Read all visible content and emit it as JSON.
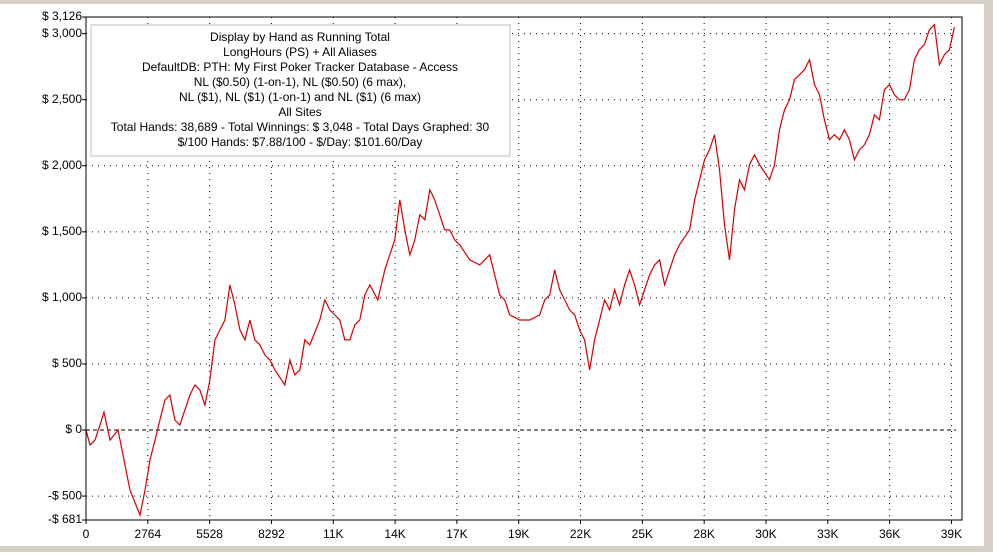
{
  "chart_data": {
    "type": "line",
    "color": "#d40000",
    "grid": true,
    "info_box": [
      "Display by Hand as Running Total",
      "LongHours (PS) + All Aliases",
      "DefaultDB: PTH: My First Poker Tracker Database - Access",
      "NL ($0.50) (1-on-1), NL ($0.50) (6 max),",
      "NL ($1), NL ($1) (1-on-1) and NL ($1) (6 max)",
      "All Sites",
      "Total Hands: 38,689 - Total Winnings: $ 3,048 - Total Days Graphed: 30",
      "$/100 Hands: $7.88/100 - $/Day: $101.60/Day"
    ],
    "xlim": [
      0,
      38900
    ],
    "ylim": [
      -681,
      3126
    ],
    "xticks": [
      0,
      2764,
      5528,
      8292,
      {
        "value": 11056,
        "label": "11K"
      },
      {
        "value": 13820,
        "label": "14K"
      },
      {
        "value": 16584,
        "label": "17K"
      },
      {
        "value": 19348,
        "label": "19K"
      },
      {
        "value": 22112,
        "label": "22K"
      },
      {
        "value": 24876,
        "label": "25K"
      },
      {
        "value": 27640,
        "label": "28K"
      },
      {
        "value": 30404,
        "label": "30K"
      },
      {
        "value": 33168,
        "label": "33K"
      },
      {
        "value": 35932,
        "label": "36K"
      },
      {
        "value": 38696,
        "label": "39K"
      }
    ],
    "yticks": [
      {
        "value": 3126,
        "label": "$ 3,126"
      },
      {
        "value": 3000,
        "label": "$ 3,000"
      },
      {
        "value": 2500,
        "label": "$ 2,500"
      },
      {
        "value": 2000,
        "label": "$ 2,000"
      },
      {
        "value": 1500,
        "label": "$ 1,500"
      },
      {
        "value": 1000,
        "label": "$ 1,000"
      },
      {
        "value": 500,
        "label": "$ 500"
      },
      {
        "value": 0,
        "label": "$ 0"
      },
      {
        "value": -500,
        "label": "-$ 500"
      },
      {
        "value": -681,
        "label": "-$ 681"
      }
    ],
    "x": [
      0,
      179,
      402,
      626,
      804,
      1072,
      1430,
      1698,
      1966,
      2234,
      2413,
      2636,
      2860,
      3083,
      3306,
      3530,
      3753,
      3977,
      4200,
      4423,
      4647,
      4870,
      5094,
      5317,
      5540,
      5764,
      5987,
      6210,
      6434,
      6657,
      6881,
      7104,
      7328,
      7551,
      7774,
      7998,
      8221,
      8445,
      8891,
      9115,
      9338,
      9562,
      9785,
      10008,
      10455,
      10679,
      10902,
      11349,
      11572,
      11796,
      12019,
      12242,
      12466,
      12689,
      13047,
      13359,
      13583,
      13806,
      14030,
      14253,
      14476,
      14700,
      14923,
      15147,
      15370,
      15593,
      15817,
      16040,
      16264,
      16487,
      16710,
      17157,
      17604,
      18051,
      18274,
      18498,
      18721,
      18944,
      19391,
      19838,
      20285,
      20508,
      20732,
      20955,
      21178,
      21402,
      21625,
      21849,
      22072,
      22295,
      22519,
      22742,
      22966,
      23189,
      23412,
      23636,
      23859,
      24083,
      24306,
      24529,
      24753,
      24976,
      25200,
      25423,
      25646,
      25870,
      26093,
      26317,
      26539,
      26987,
      27210,
      27434,
      27657,
      27880,
      28104,
      28327,
      28551,
      28774,
      28997,
      29221,
      29444,
      29668,
      29891,
      30114,
      30561,
      30784,
      31008,
      31231,
      31455,
      31678,
      31902,
      32125,
      32348,
      32572,
      32795,
      33018,
      33242,
      33465,
      33689,
      33912,
      34135,
      34359,
      34582,
      34806,
      35029,
      35253,
      35476,
      35699,
      35923,
      36146,
      36370,
      36593,
      36816,
      37040,
      37263,
      37486,
      37710,
      37933,
      38157,
      38380,
      38604,
      38827
    ],
    "values": [
      0,
      -114,
      -76,
      38,
      136,
      -76,
      0,
      -227,
      -455,
      -568,
      -644,
      -455,
      -227,
      -76,
      76,
      227,
      265,
      76,
      38,
      152,
      265,
      341,
      303,
      189,
      379,
      682,
      758,
      833,
      1098,
      947,
      758,
      682,
      833,
      682,
      644,
      568,
      530,
      455,
      341,
      530,
      417,
      455,
      682,
      644,
      833,
      985,
      909,
      833,
      682,
      682,
      795,
      833,
      1023,
      1098,
      985,
      1212,
      1326,
      1439,
      1742,
      1515,
      1326,
      1439,
      1629,
      1591,
      1818,
      1742,
      1629,
      1515,
      1515,
      1439,
      1402,
      1288,
      1250,
      1326,
      1174,
      1023,
      985,
      871,
      833,
      833,
      871,
      985,
      1023,
      1212,
      1061,
      985,
      909,
      871,
      758,
      682,
      455,
      682,
      833,
      985,
      909,
      1061,
      947,
      1098,
      1212,
      1098,
      947,
      1061,
      1174,
      1250,
      1288,
      1098,
      1212,
      1326,
      1402,
      1515,
      1742,
      1894,
      2045,
      2121,
      2235,
      1970,
      1553,
      1288,
      1667,
      1894,
      1818,
      2008,
      2083,
      2008,
      1894,
      2008,
      2273,
      2424,
      2500,
      2652,
      2689,
      2727,
      2803,
      2614,
      2538,
      2348,
      2197,
      2235,
      2197,
      2273,
      2197,
      2045,
      2121,
      2159,
      2235,
      2386,
      2348,
      2576,
      2614,
      2538,
      2500,
      2500,
      2576,
      2803,
      2879,
      2917,
      3030,
      3068,
      2765,
      2841,
      2879,
      3048
    ]
  }
}
